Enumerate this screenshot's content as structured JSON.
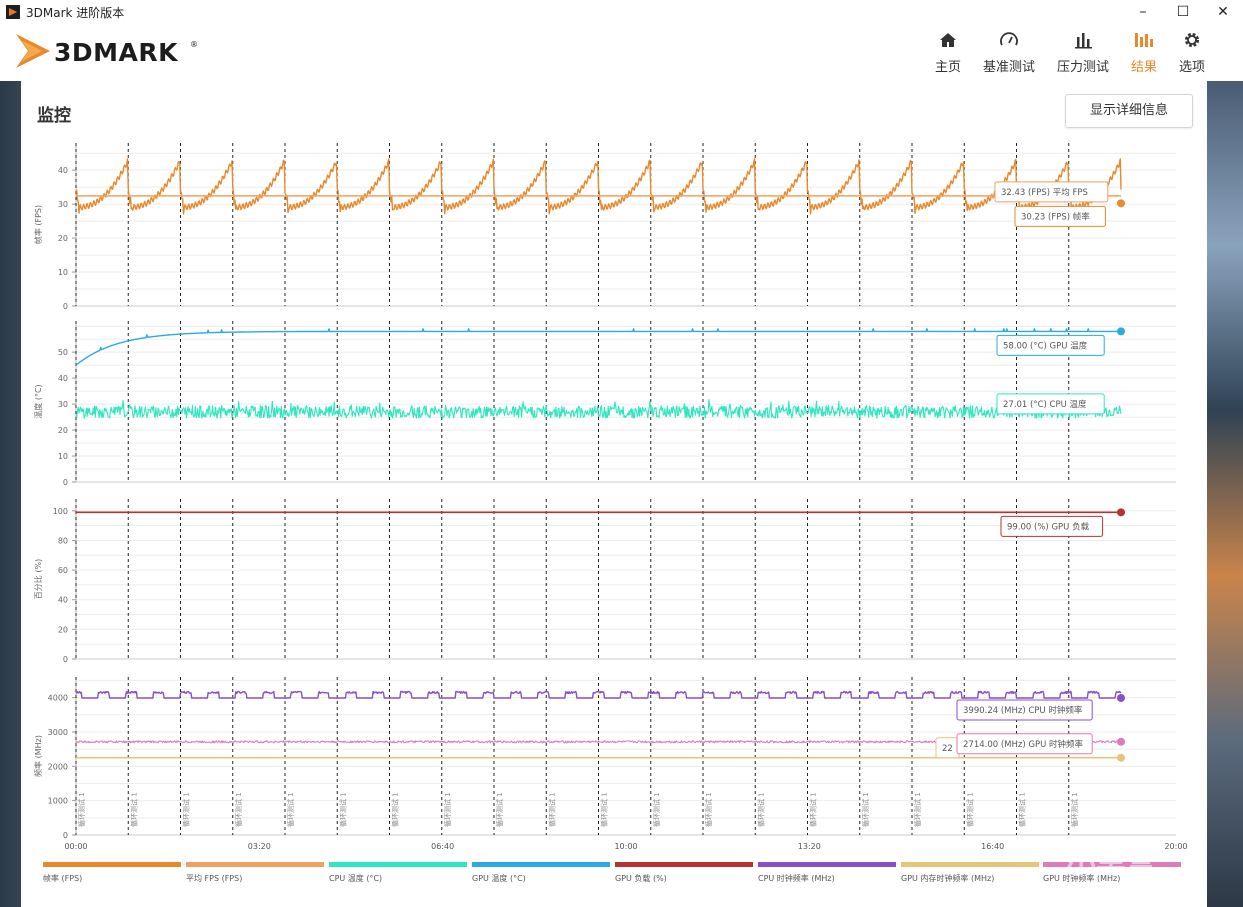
{
  "window": {
    "title": "3DMark 进阶版本",
    "minimize": "–",
    "maximize": "☐",
    "close": "✕"
  },
  "brand": {
    "logo_text": "3DMARK",
    "registered": "®"
  },
  "nav": [
    {
      "label": "主页",
      "icon": "home-icon"
    },
    {
      "label": "基准测试",
      "icon": "gauge-icon"
    },
    {
      "label": "压力测试",
      "icon": "bar-chart-icon"
    },
    {
      "label": "结果",
      "icon": "results-icon",
      "active": true
    },
    {
      "label": "选项",
      "icon": "gear-icon"
    }
  ],
  "colors": {
    "accent": "#e8892c",
    "fps": "#e8892c",
    "avg_fps": "#f0a060",
    "cpu_temp": "#2ee6c0",
    "gpu_temp": "#29abe2",
    "gpu_load": "#b83232",
    "cpu_clock": "#8a4fc8",
    "gpu_mem_clock": "#e8c478",
    "gpu_clock": "#e07ab8"
  },
  "monitor": {
    "title": "监控",
    "details_button": "显示详细信息"
  },
  "chart_data": {
    "type": "line",
    "x_unit": "mm:ss",
    "x_ticks": [
      "00:00",
      "03:20",
      "06:40",
      "10:00",
      "13:20",
      "16:40",
      "20:00"
    ],
    "x_range": [
      0,
      1200
    ],
    "loop_marker_label": "循环测试 1",
    "loop_markers_seconds": [
      0,
      57,
      114,
      171,
      228,
      285,
      342,
      399,
      456,
      513,
      570,
      627,
      684,
      741,
      798,
      855,
      912,
      969,
      1026,
      1083
    ],
    "panels": [
      {
        "ylabel": "帧率 (FPS)",
        "ylim": [
          0,
          48
        ],
        "yticks": [
          0,
          10,
          20,
          30,
          40
        ],
        "series": [
          {
            "name": "帧率 (FPS)",
            "pattern": "sawtooth",
            "min": 29,
            "max": 43,
            "period_s": 57,
            "end_value": 30.23
          },
          {
            "name": "平均 FPS",
            "value": 32.43
          }
        ],
        "annotations": [
          {
            "text": "32.43 (FPS) 平均 FPS"
          },
          {
            "text": "30.23 (FPS) 帧率"
          }
        ]
      },
      {
        "ylabel": "温度 (°C)",
        "ylim": [
          0,
          62
        ],
        "yticks": [
          0,
          10,
          20,
          30,
          40,
          50
        ],
        "series": [
          {
            "name": "GPU 温度",
            "start": 45,
            "plateau": 58,
            "end_value": 58.0
          },
          {
            "name": "CPU 温度",
            "mean": 27,
            "noise": 3,
            "end_value": 27.01
          }
        ],
        "annotations": [
          {
            "text": "58.00 (°C) GPU 温度"
          },
          {
            "text": "27.01 (°C) CPU 温度"
          }
        ]
      },
      {
        "ylabel": "百分比 (%)",
        "ylim": [
          0,
          108
        ],
        "yticks": [
          0,
          20,
          40,
          60,
          80,
          100
        ],
        "series": [
          {
            "name": "GPU 负载",
            "value": 99.0
          }
        ],
        "annotations": [
          {
            "text": "99.00 (%) GPU 负载"
          }
        ]
      },
      {
        "ylabel": "频率 (MHz)",
        "ylim": [
          0,
          4600
        ],
        "yticks": [
          0,
          1000,
          2000,
          3000,
          4000
        ],
        "series": [
          {
            "name": "CPU 时钟频率",
            "base": 3990,
            "spike": 4150,
            "end_value": 3990.24
          },
          {
            "name": "GPU 时钟频率",
            "mean": 2714,
            "end_value": 2714.0
          },
          {
            "name": "GPU 内存时钟频率",
            "value": 2250
          }
        ],
        "annotations": [
          {
            "text": "3990.24 (MHz) CPU 时钟频率"
          },
          {
            "text": "2714.00 (MHz) GPU 时钟频率"
          },
          {
            "text": "22"
          }
        ]
      }
    ]
  },
  "legend": [
    "帧率 (FPS)",
    "平均 FPS (FPS)",
    "CPU 温度 (°C)",
    "GPU 温度 (°C)",
    "GPU 负载 (%)",
    "CPU 时钟频率 (MHz)",
    "GPU 内存时钟频率 (MHz)",
    "GPU 时钟频率 (MHz)"
  ],
  "watermark": "小黑盒"
}
